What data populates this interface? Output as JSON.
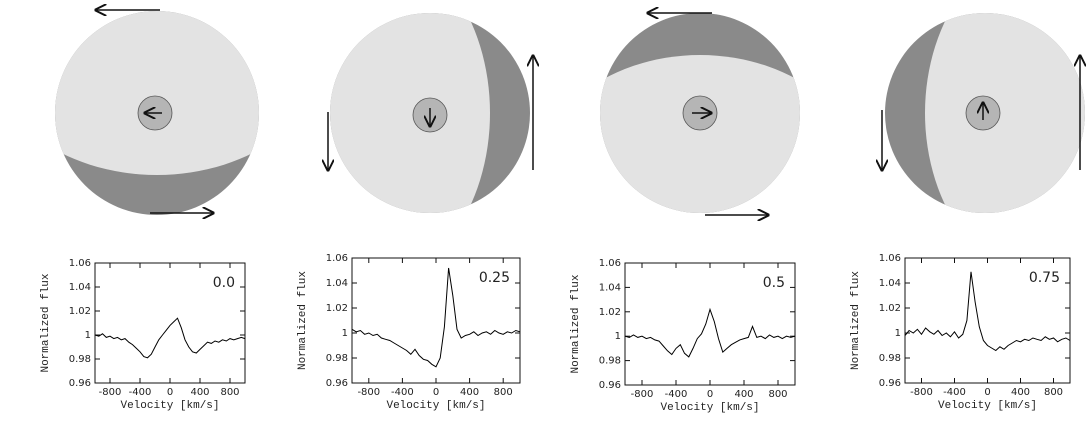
{
  "chart_data": [
    {
      "type": "line",
      "annotation": "0.0",
      "xlabel": "Velocity [km/s]",
      "ylabel": "Normalized flux",
      "color": "#000000",
      "xlim": [
        -1000,
        1000
      ],
      "xticks": [
        -800,
        -400,
        0,
        400,
        800
      ],
      "ylim": [
        0.96,
        1.06
      ],
      "yticks": [
        0.96,
        0.98,
        1,
        1.02,
        1.04,
        1.06
      ],
      "x": [
        -1000,
        -950,
        -900,
        -850,
        -800,
        -750,
        -700,
        -650,
        -600,
        -550,
        -500,
        -450,
        -400,
        -350,
        -300,
        -250,
        -200,
        -150,
        -100,
        -50,
        0,
        50,
        100,
        150,
        200,
        250,
        300,
        350,
        400,
        450,
        500,
        550,
        600,
        650,
        700,
        750,
        800,
        850,
        900,
        950,
        1000
      ],
      "values": [
        1.0,
        0.999,
        1.001,
        0.998,
        0.999,
        0.997,
        0.998,
        0.996,
        0.997,
        0.994,
        0.992,
        0.989,
        0.986,
        0.982,
        0.981,
        0.984,
        0.99,
        0.996,
        1.0,
        1.004,
        1.008,
        1.011,
        1.014,
        1.006,
        0.996,
        0.99,
        0.986,
        0.985,
        0.988,
        0.991,
        0.994,
        0.993,
        0.995,
        0.994,
        0.996,
        0.995,
        0.997,
        0.996,
        0.997,
        0.998,
        0.997
      ]
    },
    {
      "type": "line",
      "annotation": "0.25",
      "xlabel": "Velocity [km/s]",
      "ylabel": "Normalized flux",
      "color": "#000000",
      "xlim": [
        -1000,
        1000
      ],
      "xticks": [
        -800,
        -400,
        0,
        400,
        800
      ],
      "ylim": [
        0.96,
        1.06
      ],
      "yticks": [
        0.96,
        0.98,
        1,
        1.02,
        1.04,
        1.06
      ],
      "x": [
        -1000,
        -950,
        -900,
        -850,
        -800,
        -750,
        -700,
        -650,
        -600,
        -550,
        -500,
        -450,
        -400,
        -350,
        -300,
        -250,
        -200,
        -150,
        -100,
        -50,
        0,
        50,
        100,
        150,
        200,
        250,
        300,
        350,
        400,
        450,
        500,
        550,
        600,
        650,
        700,
        750,
        800,
        850,
        900,
        950,
        1000
      ],
      "values": [
        1.003,
        1.001,
        1.002,
        0.999,
        1.0,
        0.998,
        0.999,
        0.996,
        0.995,
        0.994,
        0.992,
        0.99,
        0.988,
        0.986,
        0.983,
        0.987,
        0.982,
        0.979,
        0.978,
        0.975,
        0.973,
        0.98,
        1.005,
        1.052,
        1.03,
        1.003,
        0.996,
        0.998,
        0.999,
        1.001,
        0.998,
        1.0,
        1.001,
        0.999,
        1.002,
        1.0,
        0.999,
        1.001,
        1.0,
        1.002,
        1.001
      ]
    },
    {
      "type": "line",
      "annotation": "0.5",
      "xlabel": "Velocity [km/s]",
      "ylabel": "Normalized flux",
      "color": "#000000",
      "xlim": [
        -1000,
        1000
      ],
      "xticks": [
        -800,
        -400,
        0,
        400,
        800
      ],
      "ylim": [
        0.96,
        1.06
      ],
      "yticks": [
        0.96,
        0.98,
        1,
        1.02,
        1.04,
        1.06
      ],
      "x": [
        -1000,
        -950,
        -900,
        -850,
        -800,
        -750,
        -700,
        -650,
        -600,
        -550,
        -500,
        -450,
        -400,
        -350,
        -300,
        -250,
        -200,
        -150,
        -100,
        -50,
        0,
        50,
        100,
        150,
        200,
        250,
        300,
        350,
        400,
        450,
        500,
        550,
        600,
        650,
        700,
        750,
        800,
        850,
        900,
        950,
        1000
      ],
      "values": [
        1.0,
        0.999,
        1.001,
        0.999,
        1.0,
        0.998,
        0.999,
        0.997,
        0.996,
        0.992,
        0.988,
        0.985,
        0.99,
        0.993,
        0.986,
        0.983,
        0.99,
        0.998,
        1.002,
        1.01,
        1.022,
        1.012,
        0.998,
        0.987,
        0.99,
        0.993,
        0.995,
        0.997,
        0.998,
        0.999,
        1.008,
        0.999,
        1.0,
        0.998,
        1.001,
        0.999,
        1.0,
        0.998,
        1.0,
        0.999,
        1.0
      ]
    },
    {
      "type": "line",
      "annotation": "0.75",
      "xlabel": "Velocity [km/s]",
      "ylabel": "Normalized flux",
      "color": "#000000",
      "xlim": [
        -1000,
        1000
      ],
      "xticks": [
        -800,
        -400,
        0,
        400,
        800
      ],
      "ylim": [
        0.96,
        1.06
      ],
      "yticks": [
        0.96,
        0.98,
        1,
        1.02,
        1.04,
        1.06
      ],
      "x": [
        -1000,
        -950,
        -900,
        -850,
        -800,
        -750,
        -700,
        -650,
        -600,
        -550,
        -500,
        -450,
        -400,
        -350,
        -300,
        -250,
        -200,
        -150,
        -100,
        -50,
        0,
        50,
        100,
        150,
        200,
        250,
        300,
        350,
        400,
        450,
        500,
        550,
        600,
        650,
        700,
        750,
        800,
        850,
        900,
        950,
        1000
      ],
      "values": [
        0.998,
        1.002,
        1.0,
        1.003,
        0.999,
        1.004,
        1.001,
        0.999,
        1.002,
        0.998,
        1.0,
        0.997,
        1.001,
        0.996,
        0.999,
        1.01,
        1.049,
        1.025,
        1.005,
        0.994,
        0.99,
        0.988,
        0.986,
        0.989,
        0.987,
        0.99,
        0.992,
        0.994,
        0.993,
        0.995,
        0.994,
        0.996,
        0.995,
        0.994,
        0.997,
        0.995,
        0.996,
        0.993,
        0.995,
        0.996,
        0.994
      ]
    }
  ]
}
